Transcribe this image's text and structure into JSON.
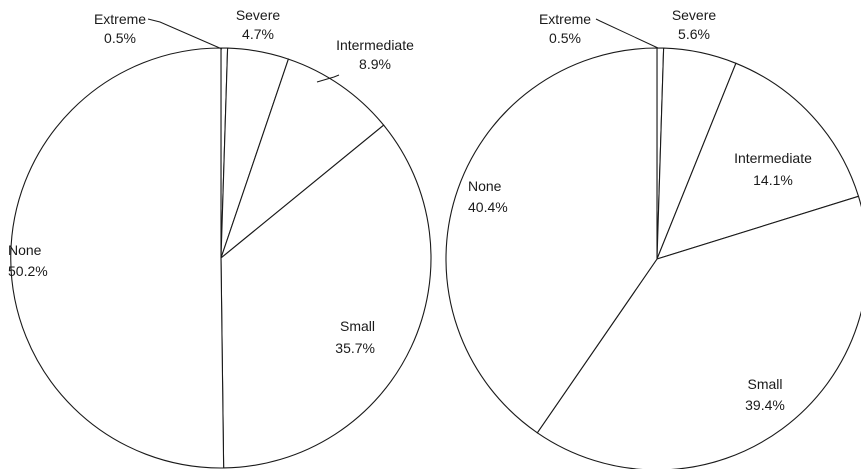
{
  "chart_data": [
    {
      "type": "pie",
      "slices": [
        {
          "label": "Extreme",
          "value": 0.5,
          "value_label": "0.5%"
        },
        {
          "label": "Severe",
          "value": 4.7,
          "value_label": "4.7%"
        },
        {
          "label": "Intermediate",
          "value": 8.9,
          "value_label": "8.9%"
        },
        {
          "label": "Small",
          "value": 35.7,
          "value_label": "35.7%"
        },
        {
          "label": "None",
          "value": 50.2,
          "value_label": "50.2%"
        }
      ]
    },
    {
      "type": "pie",
      "slices": [
        {
          "label": "Extreme",
          "value": 0.5,
          "value_label": "0.5%"
        },
        {
          "label": "Severe",
          "value": 5.6,
          "value_label": "5.6%"
        },
        {
          "label": "Intermediate",
          "value": 14.1,
          "value_label": "14.1%"
        },
        {
          "label": "Small",
          "value": 39.4,
          "value_label": "39.4%"
        },
        {
          "label": "None",
          "value": 40.4,
          "value_label": "40.4%"
        }
      ]
    }
  ],
  "colors": {
    "fill": "#ffffff",
    "stroke": "#1a1a1a",
    "text": "#1a1a1a"
  }
}
